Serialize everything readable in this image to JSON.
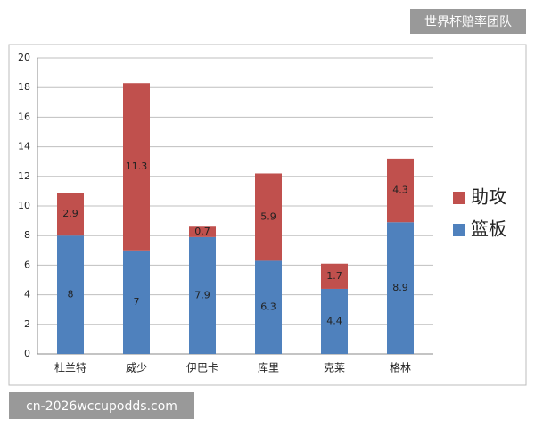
{
  "chart_data": {
    "type": "stacked_bar",
    "categories": [
      "杜兰特",
      "威少",
      "伊巴卡",
      "库里",
      "克莱",
      "格林"
    ],
    "series": [
      {
        "name": "篮板",
        "color": "#4f81bd",
        "values": [
          8,
          7,
          7.9,
          6.3,
          4.4,
          8.9
        ]
      },
      {
        "name": "助攻",
        "color": "#c0504d",
        "values": [
          2.9,
          11.3,
          0.7,
          5.9,
          1.7,
          4.3
        ]
      }
    ],
    "ylim": [
      0,
      20
    ],
    "yticks": [
      0,
      2,
      4,
      6,
      8,
      10,
      12,
      14,
      16,
      18,
      20
    ],
    "grid": true,
    "legend": "right",
    "annotations": [
      "世界杯赔率团队",
      "cn-2026wccupodds.com"
    ]
  }
}
